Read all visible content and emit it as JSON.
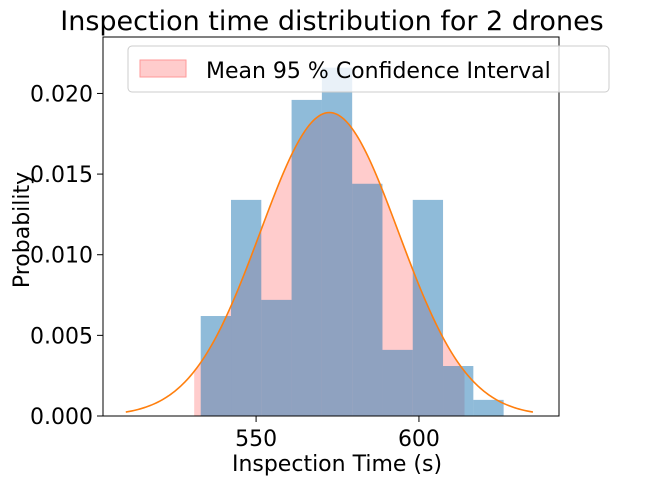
{
  "chart_data": {
    "type": "histogram",
    "title": "Inspection time distribution for 2 drones",
    "xlabel": "Inspection Time (s)",
    "ylabel": "Probability",
    "xlim": [
      503,
      643
    ],
    "ylim": [
      0,
      0.0235
    ],
    "xticks": [
      550,
      600
    ],
    "yticks": [
      0.0,
      0.005,
      0.01,
      0.015,
      0.02
    ],
    "ytick_labels": [
      "0.000",
      "0.005",
      "0.010",
      "0.015",
      "0.020"
    ],
    "histogram": {
      "color": "#1f77b4",
      "alpha": 0.5,
      "bins": [
        {
          "x0": 533.0,
          "x1": 542.3,
          "value": 0.0062
        },
        {
          "x0": 542.3,
          "x1": 551.6,
          "value": 0.0134
        },
        {
          "x0": 551.6,
          "x1": 560.9,
          "value": 0.0072
        },
        {
          "x0": 560.9,
          "x1": 570.2,
          "value": 0.0196
        },
        {
          "x0": 570.2,
          "x1": 579.5,
          "value": 0.0216
        },
        {
          "x0": 579.5,
          "x1": 588.8,
          "value": 0.0144
        },
        {
          "x0": 588.8,
          "x1": 598.1,
          "value": 0.0041
        },
        {
          "x0": 598.1,
          "x1": 607.4,
          "value": 0.0134
        },
        {
          "x0": 607.4,
          "x1": 616.7,
          "value": 0.0031
        },
        {
          "x0": 616.7,
          "x1": 626.0,
          "value": 0.001
        }
      ]
    },
    "confidence_interval": {
      "label": "Mean 95 % Confidence Interval",
      "color": "#ff9999",
      "alpha": 0.5,
      "x_start": 531,
      "x_end": 614
    },
    "normal_curve": {
      "color": "#ff7f0e",
      "mean": 572.5,
      "std": 21.2,
      "x_start": 510,
      "x_end": 635
    },
    "legend": {
      "position": "top-right"
    }
  }
}
